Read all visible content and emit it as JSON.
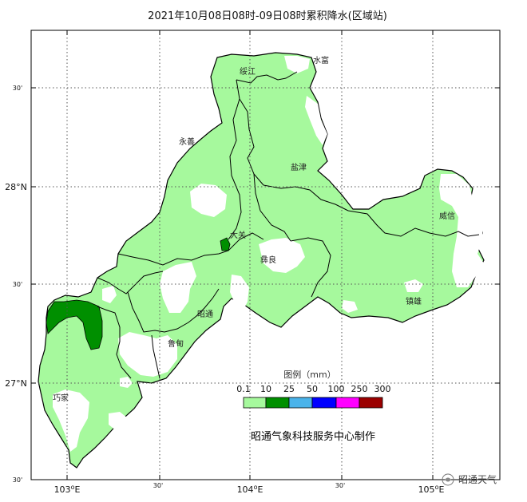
{
  "title": "2021年10月08日08时-09日08时累积降水(区域站)",
  "axes": {
    "x_ticks": [
      {
        "label": "103",
        "deg": true,
        "suffix": "E"
      },
      {
        "label": "30'",
        "deg": false,
        "suffix": ""
      },
      {
        "label": "104",
        "deg": true,
        "suffix": "E"
      },
      {
        "label": "30'",
        "deg": false,
        "suffix": ""
      },
      {
        "label": "105",
        "deg": true,
        "suffix": "E"
      }
    ],
    "y_ticks": [
      {
        "label": "30'"
      },
      {
        "label": "28°N"
      },
      {
        "label": "30'"
      },
      {
        "label": "27°N"
      },
      {
        "label": "30'"
      }
    ]
  },
  "counties": [
    "绥江",
    "水富",
    "永善",
    "盐津",
    "大关",
    "威信",
    "彝良",
    "昭通",
    "鲁甸",
    "镇雄",
    "巧家"
  ],
  "legend": {
    "title": "图例（mm）",
    "thresholds": [
      "0.1",
      "10",
      "25",
      "50",
      "100",
      "250",
      "300"
    ],
    "colors": [
      "#a6f99d",
      "#008f00",
      "#4ab3ea",
      "#0000ff",
      "#ff00ff",
      "#9b0000"
    ]
  },
  "credit": "昭通气象科技服务中心制作",
  "watermark": "昭通天气",
  "colors": {
    "light_green": "#a6f99d",
    "dark_green": "#008f00",
    "boundary": "#000000",
    "grid": "#555555"
  }
}
